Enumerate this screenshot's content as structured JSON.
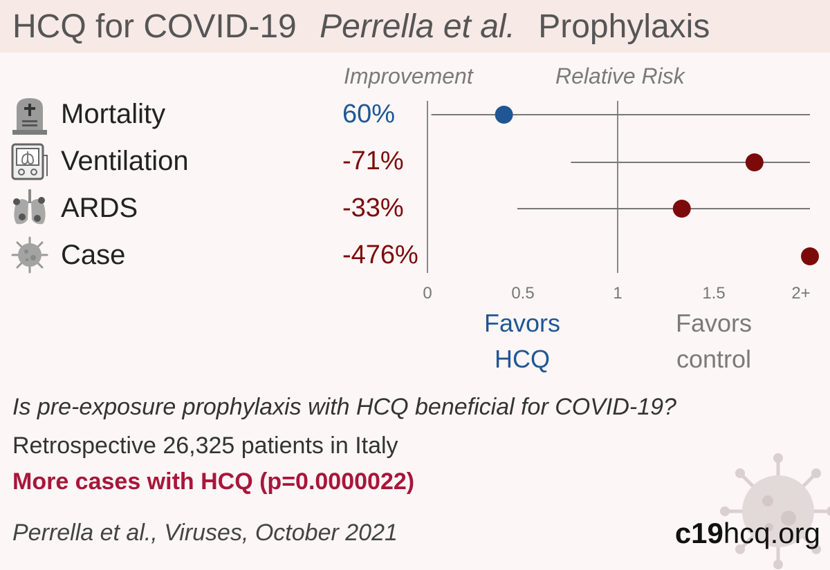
{
  "header": {
    "title": "HCQ for COVID-19",
    "authors": "Perrella et al.",
    "study_type": "Prophylaxis"
  },
  "columns": {
    "improvement": "Improvement",
    "relative_risk": "Relative Risk"
  },
  "colors": {
    "favors_hcq": "#1f5693",
    "favors_control": "#7d0a0a",
    "conclusion": "#a8163a"
  },
  "rows": [
    {
      "label": "Mortality",
      "improvement": "60%",
      "icon": "tombstone-icon"
    },
    {
      "label": "Ventilation",
      "improvement": "-71%",
      "icon": "ventilator-icon"
    },
    {
      "label": "ARDS",
      "improvement": "-33%",
      "icon": "lungs-icon"
    },
    {
      "label": "Case",
      "improvement": "-476%",
      "icon": "virus-icon"
    }
  ],
  "chart_data": {
    "type": "scatter",
    "x_ticks": [
      "0",
      "0.5",
      "1",
      "1.5",
      "2+"
    ],
    "xlim": [
      0,
      2
    ],
    "reference_line": 1,
    "series": [
      {
        "category": "Mortality",
        "rr": 0.4,
        "ci": [
          0.02,
          2.0
        ],
        "favors": "hcq"
      },
      {
        "category": "Ventilation",
        "rr": 1.71,
        "ci": [
          0.75,
          2.0
        ],
        "favors": "control"
      },
      {
        "category": "ARDS",
        "rr": 1.33,
        "ci": [
          0.47,
          2.0
        ],
        "favors": "control"
      },
      {
        "category": "Case",
        "rr": 2.0,
        "ci": null,
        "favors": "control"
      }
    ],
    "favors_left": "Favors HCQ",
    "favors_right": "Favors control"
  },
  "favors": {
    "left_line1": "Favors",
    "left_line2": "HCQ",
    "right_line1": "Favors",
    "right_line2": "control"
  },
  "summary": {
    "question": "Is pre-exposure prophylaxis with HCQ beneficial for COVID-19?",
    "design": "Retrospective 26,325 patients in Italy",
    "conclusion": "More cases with HCQ (p=0.0000022)",
    "citation": "Perrella et al., Viruses, October 2021"
  },
  "site": {
    "bold": "c19",
    "rest": "hcq.org"
  }
}
